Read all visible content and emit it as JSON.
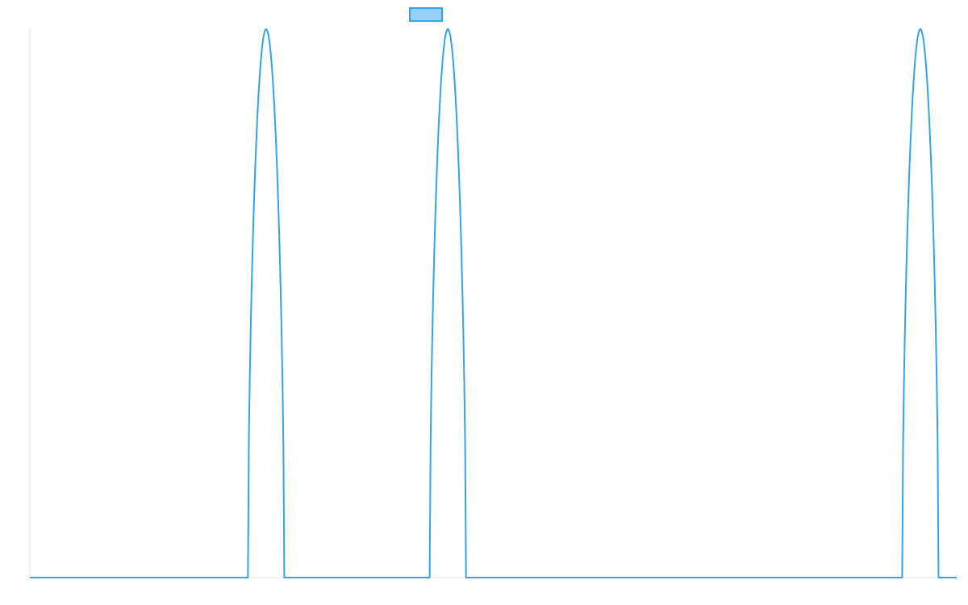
{
  "chart_data": {
    "type": "line",
    "title": "",
    "xlabel": "",
    "ylabel": "",
    "grid": false,
    "legend": {
      "placement": "top-center",
      "entries": [
        {
          "name": "",
          "fill": "#9ad0f5",
          "stroke": "#36a2eb"
        }
      ]
    },
    "xlim": [
      0,
      51
    ],
    "ylim": [
      0,
      1
    ],
    "series": [
      {
        "name": "",
        "color": "#36a2eb",
        "peaks": [
          {
            "center": 13,
            "half_width": 1
          },
          {
            "center": 23,
            "half_width": 1
          },
          {
            "center": 49,
            "half_width": 1
          }
        ],
        "baseline": 0,
        "peak_value": 1
      }
    ]
  }
}
